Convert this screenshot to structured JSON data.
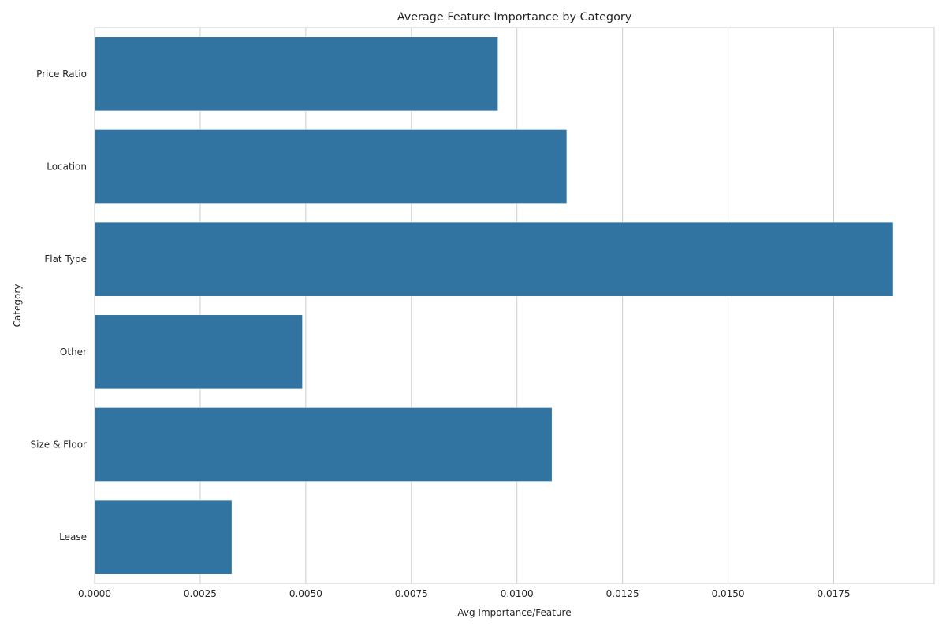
{
  "chart_data": {
    "type": "bar",
    "orientation": "horizontal",
    "title": "Average Feature Importance by Category",
    "xlabel": "Avg Importance/Feature",
    "ylabel": "Category",
    "categories": [
      "Price Ratio",
      "Location",
      "Flat Type",
      "Other",
      "Size & Floor",
      "Lease"
    ],
    "values": [
      0.00955,
      0.01118,
      0.01891,
      0.00492,
      0.01083,
      0.00325
    ],
    "xlim": [
      0,
      0.01988
    ],
    "xticks": [
      0.0,
      0.0025,
      0.005,
      0.0075,
      0.01,
      0.0125,
      0.015,
      0.0175
    ],
    "xtick_labels": [
      "0.0000",
      "0.0025",
      "0.0050",
      "0.0075",
      "0.0100",
      "0.0125",
      "0.0150",
      "0.0175"
    ],
    "grid": true,
    "bar_color": "#3274a1",
    "grid_color": "#cccccc",
    "text_color": "#262626"
  }
}
